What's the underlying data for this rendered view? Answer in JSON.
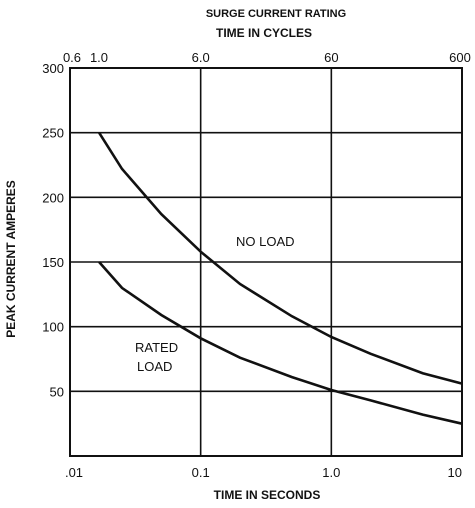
{
  "chart_data": {
    "type": "line",
    "title": "SURGE CURRENT RATING",
    "top_axis": {
      "label": "TIME IN CYCLES",
      "scale": "log",
      "ticks": [
        "0.6",
        "1.0",
        "6.0",
        "60",
        "600"
      ],
      "tick_values": [
        0.6,
        1.0,
        6.0,
        60,
        600
      ]
    },
    "xlabel": "TIME IN SECONDS",
    "xscale": "log",
    "xlim": [
      0.01,
      10
    ],
    "xticks": [
      ".01",
      "0.1",
      "1.0",
      "10"
    ],
    "xtick_values": [
      0.01,
      0.1,
      1.0,
      10
    ],
    "ylabel": "PEAK CURRENT AMPERES",
    "ylim": [
      0,
      300
    ],
    "yticks": [
      "50",
      "100",
      "150",
      "200",
      "250",
      "300"
    ],
    "ytick_values": [
      50,
      100,
      150,
      200,
      250,
      300
    ],
    "grid": true,
    "series": [
      {
        "name": "NO LOAD",
        "x": [
          0.0167,
          0.025,
          0.05,
          0.1,
          0.2,
          0.5,
          1.0,
          2.0,
          5.0,
          10.0
        ],
        "y": [
          250,
          222,
          187,
          158,
          133,
          108,
          92,
          79,
          64,
          56
        ]
      },
      {
        "name": "RATED LOAD",
        "x": [
          0.0167,
          0.025,
          0.05,
          0.1,
          0.2,
          0.5,
          1.0,
          2.0,
          5.0,
          10.0
        ],
        "y": [
          150,
          130,
          109,
          91,
          76,
          61,
          51,
          43,
          32,
          25
        ]
      }
    ],
    "annotations": [
      {
        "text": "NO LOAD",
        "series": 0
      },
      {
        "text": "RATED",
        "series": 1
      },
      {
        "text": "LOAD",
        "series": 1
      }
    ]
  }
}
